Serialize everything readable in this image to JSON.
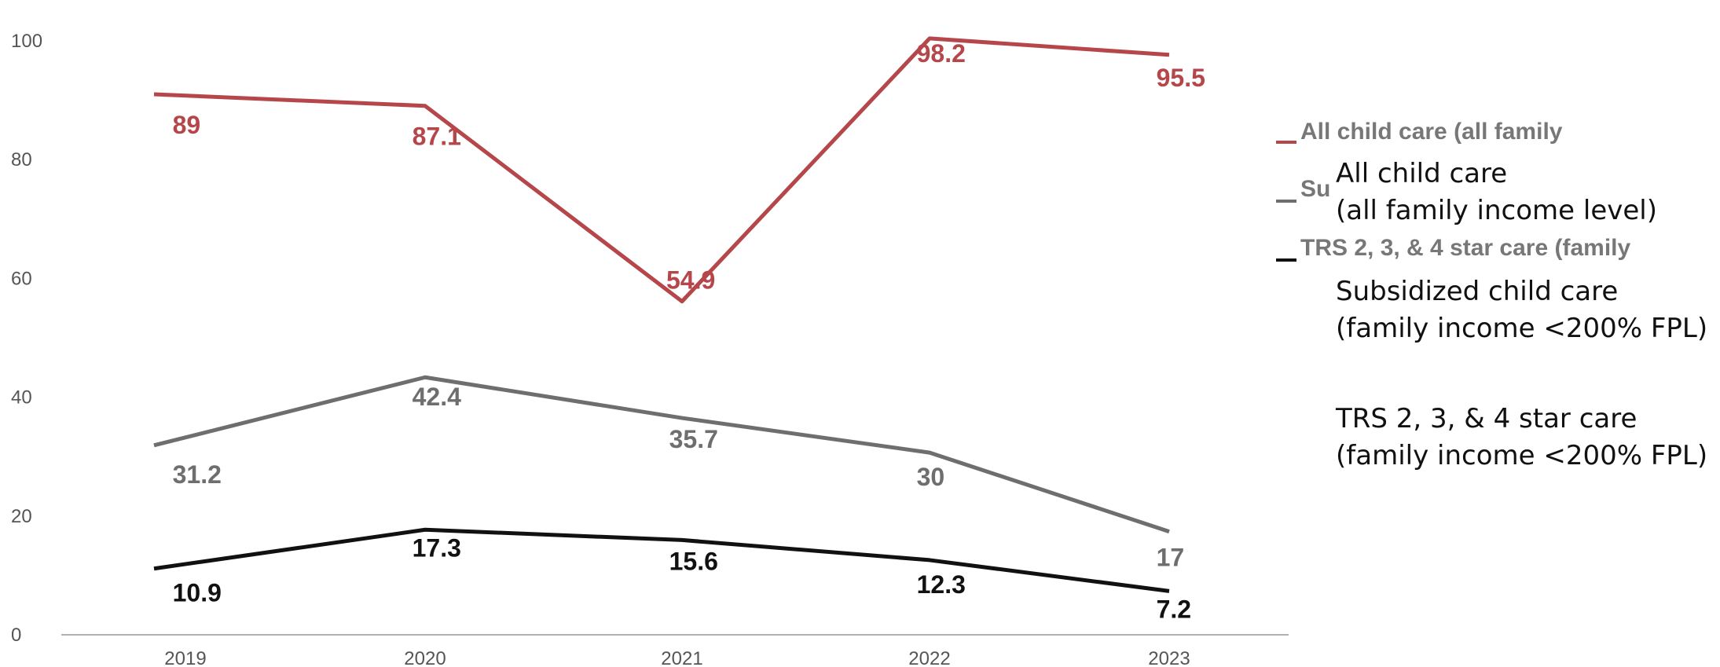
{
  "chart_data": {
    "type": "line",
    "title": "",
    "xlabel": "",
    "ylabel": "",
    "x": [
      "2019",
      "2020",
      "2021",
      "2022",
      "2023"
    ],
    "ylim": [
      0,
      100
    ],
    "yticks": [
      "0",
      "20",
      "40",
      "60",
      "80",
      "100"
    ],
    "grid": false,
    "legend_position": "right",
    "series": [
      {
        "name": "All child care (all family income level)",
        "color": "#b5474b",
        "values": [
          89,
          87.1,
          54.9,
          98.2,
          95.5
        ],
        "labels": [
          "89",
          "87.1",
          "54.9",
          "98.2",
          "95.5"
        ]
      },
      {
        "name": "Subsidized child care (family income <200% FPL)",
        "color": "#6e6e6e",
        "values": [
          31.2,
          42.4,
          35.7,
          30,
          17
        ],
        "labels": [
          "31.2",
          "42.4",
          "35.7",
          "30",
          "17"
        ]
      },
      {
        "name": "TRS 2, 3, & 4 star care (family income <200% FPL)",
        "color": "#111111",
        "values": [
          10.9,
          17.3,
          15.6,
          12.3,
          7.2
        ],
        "labels": [
          "10.9",
          "17.3",
          "15.6",
          "12.3",
          "7.2"
        ]
      }
    ]
  },
  "legend_underlay": {
    "line1": "All child care (all family",
    "line2": "Su",
    "line3": "TRS 2, 3, & 4 star care (family"
  },
  "legend_overlay": [
    {
      "line1": "All child care",
      "line2": "(all family income level)"
    },
    {
      "line1": "Subsidized child care",
      "line2": "(family income <200% FPL)"
    },
    {
      "line1": "TRS 2, 3, & 4 star care",
      "line2": "(family income <200% FPL)"
    }
  ]
}
